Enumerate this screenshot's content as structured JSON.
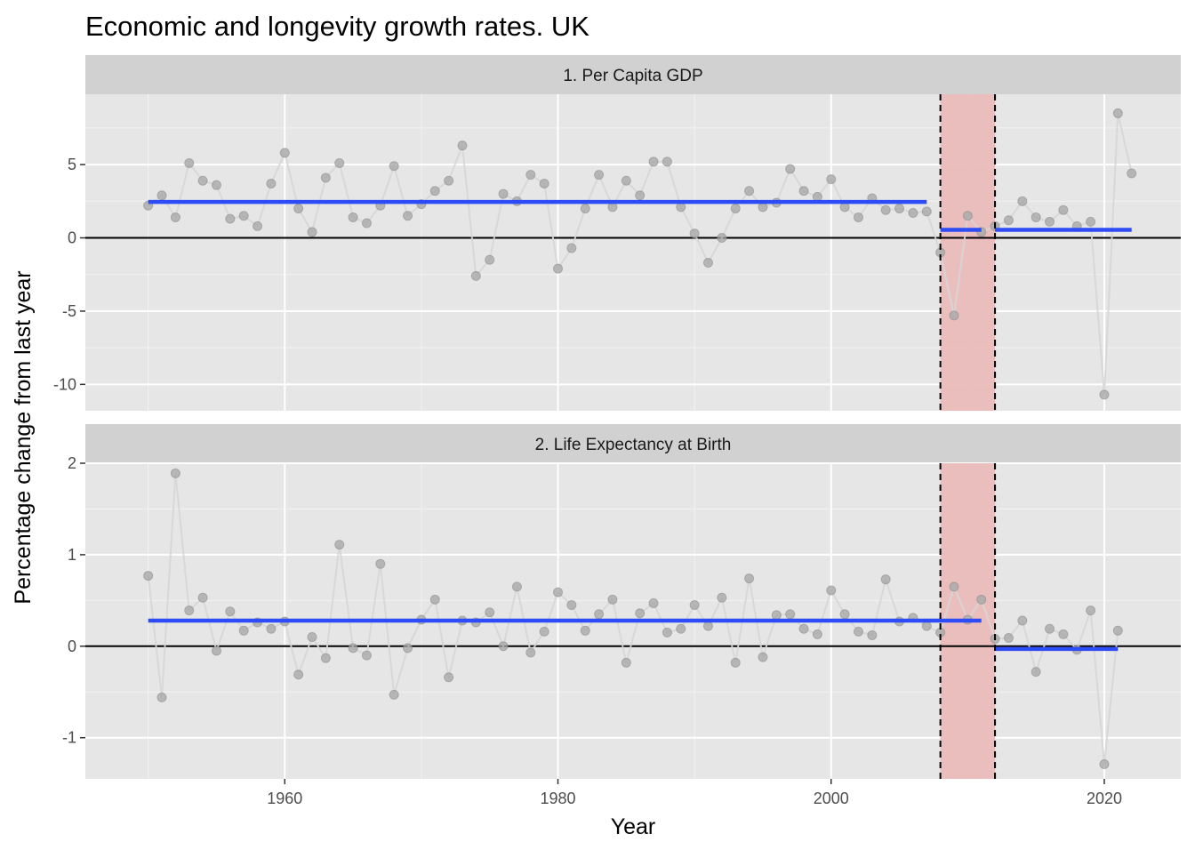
{
  "chart_data": {
    "type": "line",
    "title": "Economic and longevity growth rates. UK",
    "xlabel": "Year",
    "ylabel": "Percentage change from last year",
    "xlim": [
      1945.4,
      2025.6
    ],
    "xticks": [
      1960,
      1980,
      2000,
      2020
    ],
    "shaded_region": {
      "x_start": 2008,
      "x_end": 2012,
      "color": "#ebbcbc",
      "line_color": "#000000",
      "line_style": "dashed"
    },
    "colors": {
      "points": "#a6a6a6",
      "line": "#d6d6d6",
      "mean_line": "#2e4cf5",
      "panel_bg": "#e6e6e6",
      "strip_bg": "#d1d1d1"
    },
    "grid": true,
    "panels": [
      {
        "strip_label": "1. Per Capita GDP",
        "ylim": [
          -11.8,
          9.8
        ],
        "yticks": [
          -10,
          -5,
          0,
          5
        ],
        "ytick_labels": [
          "-10",
          "-5",
          "0",
          "5"
        ],
        "x": [
          1950,
          1951,
          1952,
          1953,
          1954,
          1955,
          1956,
          1957,
          1958,
          1959,
          1960,
          1961,
          1962,
          1963,
          1964,
          1965,
          1966,
          1967,
          1968,
          1969,
          1970,
          1971,
          1972,
          1973,
          1974,
          1975,
          1976,
          1977,
          1978,
          1979,
          1980,
          1981,
          1982,
          1983,
          1984,
          1985,
          1986,
          1987,
          1988,
          1989,
          1990,
          1991,
          1992,
          1993,
          1994,
          1995,
          1996,
          1997,
          1998,
          1999,
          2000,
          2001,
          2002,
          2003,
          2004,
          2005,
          2006,
          2007,
          2008,
          2009,
          2010,
          2011,
          2012,
          2013,
          2014,
          2015,
          2016,
          2017,
          2018,
          2019,
          2020,
          2021,
          2022
        ],
        "values": [
          2.2,
          2.9,
          1.4,
          5.1,
          3.9,
          3.6,
          1.3,
          1.5,
          0.8,
          3.7,
          5.8,
          2.0,
          0.4,
          4.1,
          5.1,
          1.4,
          1.0,
          2.2,
          4.9,
          1.5,
          2.3,
          3.2,
          3.9,
          6.3,
          -2.6,
          -1.5,
          3.0,
          2.5,
          4.3,
          3.7,
          -2.1,
          -0.7,
          2.0,
          4.3,
          2.1,
          3.9,
          2.9,
          5.2,
          5.2,
          2.1,
          0.3,
          -1.7,
          0.0,
          2.0,
          3.2,
          2.1,
          2.4,
          4.7,
          3.2,
          2.8,
          4.0,
          2.1,
          1.4,
          2.7,
          1.9,
          2.0,
          1.7,
          1.8,
          -1.0,
          -5.3,
          1.5,
          0.4,
          0.8,
          1.2,
          2.5,
          1.4,
          1.1,
          1.9,
          0.8,
          1.1,
          -10.7,
          8.5,
          4.4
        ],
        "mean_segments": [
          {
            "x_start": 1950,
            "x_end": 2007,
            "value": 2.45
          },
          {
            "x_start": 2008,
            "x_end": 2011,
            "value": 0.55
          },
          {
            "x_start": 2012,
            "x_end": 2022,
            "value": 0.55
          }
        ]
      },
      {
        "strip_label": "2. Life Expectancy at Birth",
        "ylim": [
          -1.45,
          2.0
        ],
        "yticks": [
          -1,
          0,
          1,
          2
        ],
        "ytick_labels": [
          "-1",
          "0",
          "1",
          "2"
        ],
        "x": [
          1950,
          1951,
          1952,
          1953,
          1954,
          1955,
          1956,
          1957,
          1958,
          1959,
          1960,
          1961,
          1962,
          1963,
          1964,
          1965,
          1966,
          1967,
          1968,
          1969,
          1970,
          1971,
          1972,
          1973,
          1974,
          1975,
          1976,
          1977,
          1978,
          1979,
          1980,
          1981,
          1982,
          1983,
          1984,
          1985,
          1986,
          1987,
          1988,
          1989,
          1990,
          1991,
          1992,
          1993,
          1994,
          1995,
          1996,
          1997,
          1998,
          1999,
          2000,
          2001,
          2002,
          2003,
          2004,
          2005,
          2006,
          2007,
          2008,
          2009,
          2010,
          2011,
          2012,
          2013,
          2014,
          2015,
          2016,
          2017,
          2018,
          2019,
          2020,
          2021
        ],
        "values": [
          0.77,
          -0.56,
          1.89,
          0.39,
          0.53,
          -0.05,
          0.38,
          0.17,
          0.26,
          0.19,
          0.27,
          -0.31,
          0.1,
          -0.13,
          1.11,
          -0.02,
          -0.1,
          0.9,
          -0.53,
          -0.02,
          0.29,
          0.51,
          -0.34,
          0.28,
          0.26,
          0.37,
          0.0,
          0.65,
          -0.07,
          0.16,
          0.59,
          0.45,
          0.17,
          0.35,
          0.51,
          -0.18,
          0.36,
          0.47,
          0.15,
          0.19,
          0.45,
          0.22,
          0.53,
          -0.18,
          0.74,
          -0.12,
          0.34,
          0.35,
          0.19,
          0.13,
          0.61,
          0.35,
          0.16,
          0.12,
          0.73,
          0.27,
          0.31,
          0.22,
          0.15,
          0.65,
          0.29,
          0.51,
          0.08,
          0.09,
          0.28,
          -0.28,
          0.19,
          0.13,
          -0.04,
          0.39,
          -1.29,
          0.17
        ],
        "mean_segments": [
          {
            "x_start": 1950,
            "x_end": 2011,
            "value": 0.28
          },
          {
            "x_start": 2012,
            "x_end": 2021,
            "value": -0.03
          }
        ]
      }
    ]
  }
}
